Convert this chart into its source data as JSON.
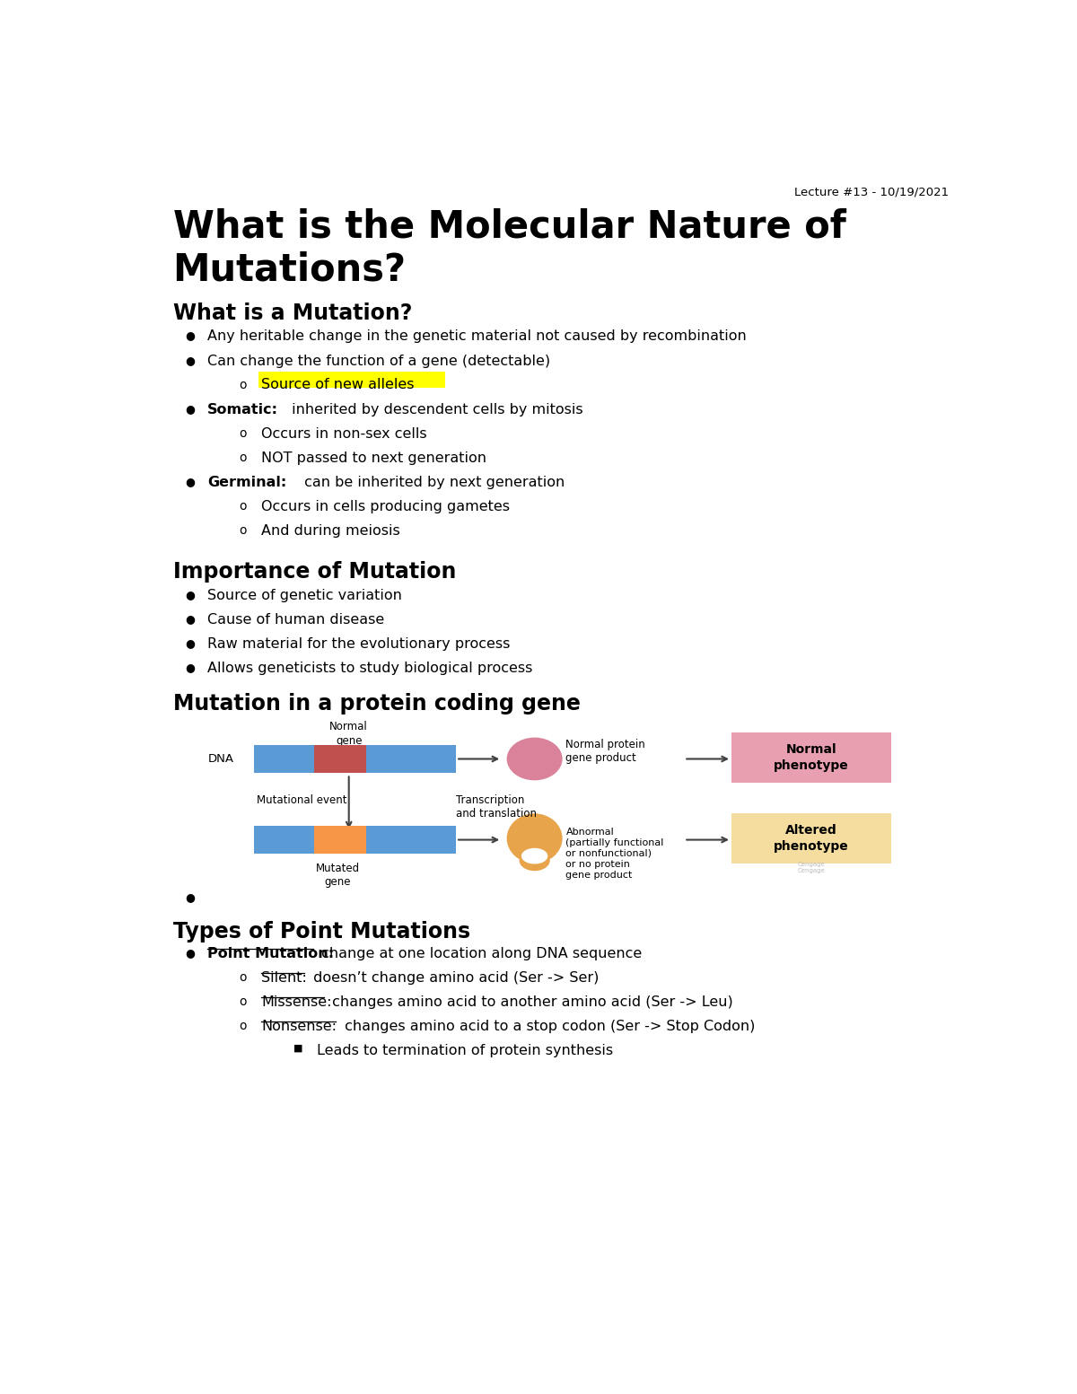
{
  "bg_color": "#ffffff",
  "lecture_info": "Lecture #13 - 10/19/2021",
  "main_title_line1": "What is the Molecular Nature of",
  "main_title_line2": "Mutations?",
  "section1_title": "What is a Mutation?",
  "bullet1": "Any heritable change in the genetic material not caused by recombination",
  "bullet2": "Can change the function of a gene (detectable)",
  "highlight_text": "Source of new alleles",
  "highlight_color": "#ffff00",
  "somatic_bold": "Somatic:",
  "somatic_rest": " inherited by descendent cells by mitosis",
  "somatic_sub1": "Occurs in non-sex cells",
  "somatic_sub2": "NOT passed to next generation",
  "germinal_bold": "Germinal:",
  "germinal_rest": " can be inherited by next generation",
  "germinal_sub1": "Occurs in cells producing gametes",
  "germinal_sub2": "And during meiosis",
  "section2_title": "Importance of Mutation",
  "imp_bullets": [
    "Source of genetic variation",
    "Cause of human disease",
    "Raw material for the evolutionary process",
    "Allows geneticists to study biological process"
  ],
  "section3_title": "Mutation in a protein coding gene",
  "section4_title": "Types of Point Mutations",
  "point_bold": "Point Mutation:",
  "point_rest": " change at one location along DNA sequence",
  "silent_ul": "Silent:",
  "silent_rest": " doesn’t change amino acid (Ser -> Ser)",
  "missense_ul": "Missense:",
  "missense_rest": " changes amino acid to another amino acid (Ser -> Leu)",
  "nonsense_ul": "Nonsense:",
  "nonsense_rest": " changes amino acid to a stop codon (Ser -> Stop Codon)",
  "leads_to": "Leads to termination of protein synthesis",
  "text_color": "#000000",
  "dna_blue": "#5b9bd5",
  "dna_red": "#c0504d",
  "dna_orange": "#f79646",
  "normal_protein_color": "#d9829a",
  "abnormal_protein_color": "#e8a44a",
  "normal_phenotype_bg": "#e8a0b0",
  "altered_phenotype_bg": "#f5dda0",
  "arrow_color": "#404040",
  "watermark_color": "#bbbbbb"
}
